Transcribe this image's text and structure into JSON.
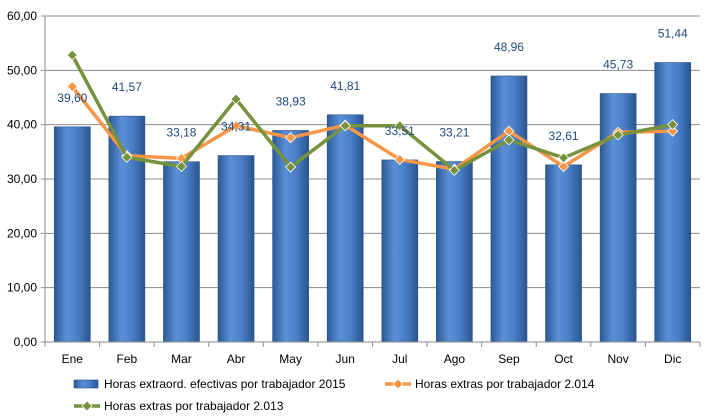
{
  "chart_data": {
    "type": "bar",
    "categories": [
      "Ene",
      "Feb",
      "Mar",
      "Abr",
      "May",
      "Jun",
      "Jul",
      "Ago",
      "Sep",
      "Oct",
      "Nov",
      "Dic"
    ],
    "ylim": [
      0,
      60
    ],
    "y_ticks": [
      "0,00",
      "10,00",
      "20,00",
      "30,00",
      "40,00",
      "50,00",
      "60,00"
    ],
    "grid": true,
    "legend_position": "bottom",
    "series": [
      {
        "name": "Horas extraord. efectivas por trabajador 2015",
        "kind": "bar",
        "color": "#4f81bd",
        "values": [
          39.6,
          41.57,
          33.18,
          34.31,
          38.93,
          41.81,
          33.51,
          33.21,
          48.96,
          32.61,
          45.73,
          51.44
        ],
        "labels": [
          "39,60",
          "41,57",
          "33,18",
          "34,31",
          "38,93",
          "41,81",
          "33,51",
          "33,21",
          "48,96",
          "32,61",
          "45,73",
          "51,44"
        ]
      },
      {
        "name": "Horas extras por trabajador 2.014",
        "kind": "line",
        "color": "#f79646",
        "marker": "diamond",
        "values": [
          47.0,
          34.3,
          33.8,
          39.8,
          37.6,
          39.9,
          33.6,
          31.8,
          38.8,
          32.3,
          38.6,
          38.8
        ]
      },
      {
        "name": "Horas extras por trabajador 2.013",
        "kind": "line",
        "color": "#76923c",
        "marker": "diamond",
        "values": [
          52.8,
          34.0,
          32.3,
          44.7,
          32.2,
          39.8,
          39.8,
          31.6,
          37.2,
          33.9,
          38.1,
          40.0
        ]
      }
    ]
  }
}
